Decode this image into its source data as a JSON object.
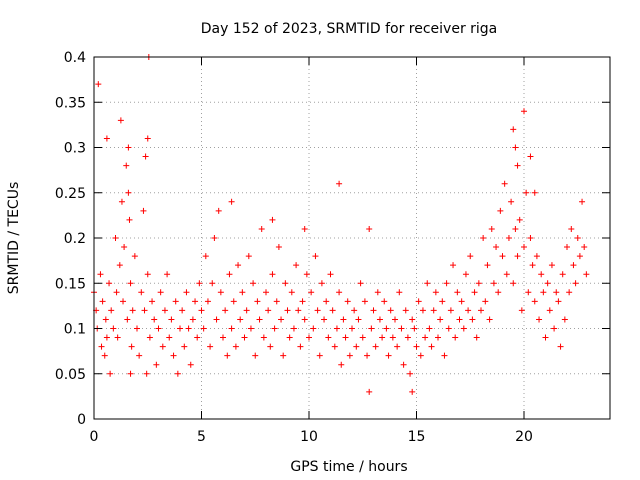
{
  "chart_data": {
    "type": "scatter",
    "title": "Day 152 of 2023, SRMTID for receiver riga",
    "xlabel": "GPS time / hours",
    "ylabel": "SRMTID / TECUs",
    "xlim": [
      0,
      24
    ],
    "ylim": [
      0,
      0.4
    ],
    "grid": true,
    "marker": "+",
    "color": "#ff0000",
    "xticks": [
      0,
      5,
      10,
      15,
      20
    ],
    "xtick_labels": [
      "0",
      "5",
      "10",
      "15",
      "20"
    ],
    "yticks": [
      0,
      0.05,
      0.1,
      0.15,
      0.2,
      0.25,
      0.3,
      0.35,
      0.4
    ],
    "ytick_labels": [
      "0",
      "0.05",
      "0.1",
      "0.15",
      "0.2",
      "0.25",
      "0.3",
      "0.35",
      "0.4"
    ],
    "series": [
      {
        "x": [
          0.0,
          0.1,
          0.15,
          0.3,
          0.35,
          0.4,
          0.5,
          0.55,
          0.6,
          0.7,
          0.75,
          0.8,
          0.9,
          1.0,
          1.05,
          1.1,
          1.2,
          1.3,
          1.35,
          1.4,
          1.5,
          1.55,
          1.6,
          1.65,
          1.7,
          1.75,
          1.8,
          1.9,
          2.0,
          2.1,
          2.2,
          2.3,
          2.35,
          2.4,
          2.5,
          2.6,
          2.7,
          2.8,
          2.9,
          3.0,
          3.1,
          3.2,
          3.3,
          3.4,
          3.5,
          3.6,
          3.7,
          3.8,
          3.9,
          4.0,
          4.1,
          4.2,
          4.3,
          4.4,
          4.5,
          4.6,
          4.7,
          4.8,
          4.9,
          5.0,
          5.1,
          5.2,
          5.3,
          5.4,
          5.5,
          5.6,
          5.7,
          5.8,
          5.9,
          6.0,
          6.1,
          6.2,
          6.3,
          6.4,
          6.5,
          6.6,
          6.7,
          6.8,
          6.9,
          7.0,
          7.1,
          7.2,
          7.3,
          7.4,
          7.5,
          7.6,
          7.7,
          7.8,
          7.9,
          8.0,
          8.1,
          8.2,
          8.3,
          8.4,
          8.5,
          8.6,
          8.7,
          8.8,
          8.9,
          9.0,
          9.1,
          9.2,
          9.3,
          9.4,
          9.5,
          9.6,
          9.7,
          9.8,
          9.9,
          10.0,
          10.1,
          10.2,
          10.3,
          10.4,
          10.5,
          10.6,
          10.7,
          10.8,
          10.9,
          11.0,
          11.1,
          11.2,
          11.3,
          11.4,
          11.5,
          11.6,
          11.7,
          11.8,
          11.9,
          12.0,
          12.1,
          12.2,
          12.3,
          12.4,
          12.5,
          12.6,
          12.7,
          12.8,
          12.9,
          13.0,
          13.1,
          13.2,
          13.3,
          13.4,
          13.5,
          13.6,
          13.7,
          13.8,
          13.9,
          14.0,
          14.1,
          14.2,
          14.3,
          14.4,
          14.5,
          14.6,
          14.7,
          14.8,
          14.9,
          15.0,
          15.1,
          15.2,
          15.3,
          15.4,
          15.5,
          15.6,
          15.7,
          15.8,
          15.9,
          16.0,
          16.1,
          16.2,
          16.3,
          16.4,
          16.5,
          16.6,
          16.7,
          16.8,
          16.9,
          17.0,
          17.1,
          17.2,
          17.3,
          17.4,
          17.5,
          17.6,
          17.7,
          17.8,
          17.9,
          18.0,
          18.1,
          18.2,
          18.3,
          18.4,
          18.5,
          18.6,
          18.7,
          18.8,
          18.9,
          19.0,
          19.1,
          19.2,
          19.3,
          19.4,
          19.5,
          19.6,
          19.7,
          19.8,
          19.9,
          20.0,
          20.1,
          20.2,
          20.3,
          20.4,
          20.5,
          20.6,
          20.7,
          20.8,
          20.9,
          21.0,
          21.1,
          21.2,
          21.3,
          21.4,
          21.5,
          21.6,
          21.7,
          21.8,
          21.9,
          22.0,
          22.1,
          22.2,
          22.3,
          22.4,
          22.5,
          22.6,
          22.7,
          22.8,
          22.9,
          0.2,
          0.6,
          1.25,
          1.6,
          1.7,
          2.45,
          2.5,
          2.55,
          19.5,
          19.6,
          19.7,
          20.0,
          20.3,
          20.5,
          12.8,
          14.8,
          11.4,
          6.4,
          8.3,
          9.8
        ],
        "y": [
          0.14,
          0.12,
          0.1,
          0.16,
          0.08,
          0.13,
          0.07,
          0.11,
          0.09,
          0.15,
          0.05,
          0.12,
          0.1,
          0.2,
          0.14,
          0.09,
          0.17,
          0.24,
          0.13,
          0.19,
          0.28,
          0.11,
          0.3,
          0.22,
          0.15,
          0.08,
          0.12,
          0.18,
          0.1,
          0.07,
          0.14,
          0.23,
          0.12,
          0.29,
          0.16,
          0.09,
          0.13,
          0.11,
          0.06,
          0.1,
          0.14,
          0.08,
          0.12,
          0.16,
          0.09,
          0.11,
          0.07,
          0.13,
          0.05,
          0.1,
          0.12,
          0.08,
          0.14,
          0.1,
          0.06,
          0.11,
          0.13,
          0.09,
          0.15,
          0.12,
          0.1,
          0.18,
          0.13,
          0.08,
          0.15,
          0.2,
          0.11,
          0.23,
          0.14,
          0.09,
          0.12,
          0.07,
          0.16,
          0.1,
          0.13,
          0.08,
          0.17,
          0.11,
          0.14,
          0.09,
          0.12,
          0.18,
          0.1,
          0.15,
          0.07,
          0.13,
          0.11,
          0.21,
          0.09,
          0.14,
          0.12,
          0.08,
          0.16,
          0.1,
          0.13,
          0.19,
          0.11,
          0.07,
          0.15,
          0.12,
          0.09,
          0.14,
          0.1,
          0.17,
          0.12,
          0.08,
          0.13,
          0.11,
          0.16,
          0.09,
          0.14,
          0.1,
          0.18,
          0.12,
          0.07,
          0.15,
          0.11,
          0.13,
          0.09,
          0.16,
          0.12,
          0.08,
          0.1,
          0.14,
          0.06,
          0.11,
          0.09,
          0.13,
          0.07,
          0.1,
          0.12,
          0.08,
          0.11,
          0.15,
          0.09,
          0.13,
          0.07,
          0.21,
          0.1,
          0.12,
          0.08,
          0.14,
          0.11,
          0.09,
          0.13,
          0.1,
          0.07,
          0.12,
          0.09,
          0.11,
          0.08,
          0.14,
          0.1,
          0.06,
          0.12,
          0.09,
          0.05,
          0.11,
          0.1,
          0.08,
          0.13,
          0.07,
          0.12,
          0.09,
          0.15,
          0.1,
          0.08,
          0.12,
          0.14,
          0.09,
          0.11,
          0.13,
          0.07,
          0.15,
          0.1,
          0.12,
          0.17,
          0.09,
          0.14,
          0.11,
          0.13,
          0.1,
          0.16,
          0.12,
          0.18,
          0.11,
          0.14,
          0.09,
          0.15,
          0.12,
          0.2,
          0.13,
          0.17,
          0.11,
          0.21,
          0.15,
          0.19,
          0.14,
          0.23,
          0.18,
          0.26,
          0.16,
          0.2,
          0.24,
          0.15,
          0.21,
          0.18,
          0.22,
          0.12,
          0.19,
          0.25,
          0.14,
          0.2,
          0.17,
          0.13,
          0.18,
          0.11,
          0.16,
          0.14,
          0.09,
          0.15,
          0.12,
          0.17,
          0.1,
          0.14,
          0.13,
          0.08,
          0.16,
          0.11,
          0.19,
          0.14,
          0.21,
          0.17,
          0.15,
          0.2,
          0.18,
          0.24,
          0.19,
          0.16,
          0.37,
          0.31,
          0.33,
          0.25,
          0.05,
          0.05,
          0.31,
          0.4,
          0.32,
          0.3,
          0.28,
          0.34,
          0.29,
          0.25,
          0.03,
          0.03,
          0.26,
          0.24,
          0.22,
          0.21
        ]
      }
    ]
  }
}
